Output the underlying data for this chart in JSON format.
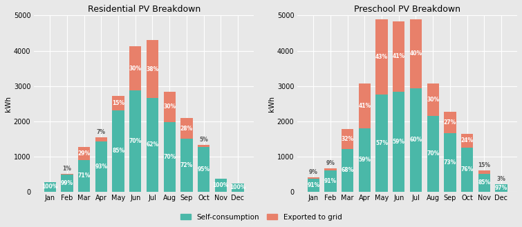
{
  "months": [
    "Jan",
    "Feb",
    "Mar",
    "Apr",
    "May",
    "Jun",
    "Jul",
    "Aug",
    "Sep",
    "Oct",
    "Nov",
    "Dec"
  ],
  "residential": {
    "title": "Residential PV Breakdown",
    "self_consumed": [
      270,
      490,
      900,
      1430,
      2300,
      2870,
      2650,
      1980,
      1500,
      1260,
      370,
      230
    ],
    "exported": [
      0,
      5,
      370,
      110,
      410,
      1260,
      1650,
      850,
      580,
      70,
      0,
      0
    ],
    "pct_self": [
      "100%",
      "99%",
      "71%",
      "93%",
      "85%",
      "70%",
      "62%",
      "70%",
      "72%",
      "95%",
      "100%",
      "100%"
    ],
    "pct_export": [
      "0%",
      "1%",
      "29%",
      "7%",
      "15%",
      "30%",
      "38%",
      "30%",
      "28%",
      "5%",
      "0%",
      "0%"
    ]
  },
  "preschool": {
    "title": "Preschool PV Breakdown",
    "self_consumed": [
      370,
      590,
      1210,
      1800,
      2750,
      2840,
      2940,
      2150,
      1650,
      1250,
      510,
      200
    ],
    "exported": [
      40,
      60,
      570,
      1270,
      2150,
      2000,
      1960,
      920,
      620,
      390,
      90,
      6
    ],
    "pct_self": [
      "91%",
      "91%",
      "68%",
      "59%",
      "57%",
      "59%",
      "60%",
      "70%",
      "73%",
      "76%",
      "85%",
      "97%"
    ],
    "pct_export": [
      "9%",
      "9%",
      "32%",
      "41%",
      "43%",
      "41%",
      "40%",
      "30%",
      "27%",
      "24%",
      "15%",
      "3%"
    ]
  },
  "color_self": "#4ab8a8",
  "color_export": "#e8806a",
  "bg_color": "#e8e8e8",
  "ylabel": "kWh",
  "ylim": [
    0,
    5000
  ],
  "yticks": [
    0,
    1000,
    2000,
    3000,
    4000,
    5000
  ],
  "label_self": "Self-consumption",
  "label_export": "Exported to grid",
  "text_color_white": "#ffffff",
  "text_fontsize": 5.5
}
